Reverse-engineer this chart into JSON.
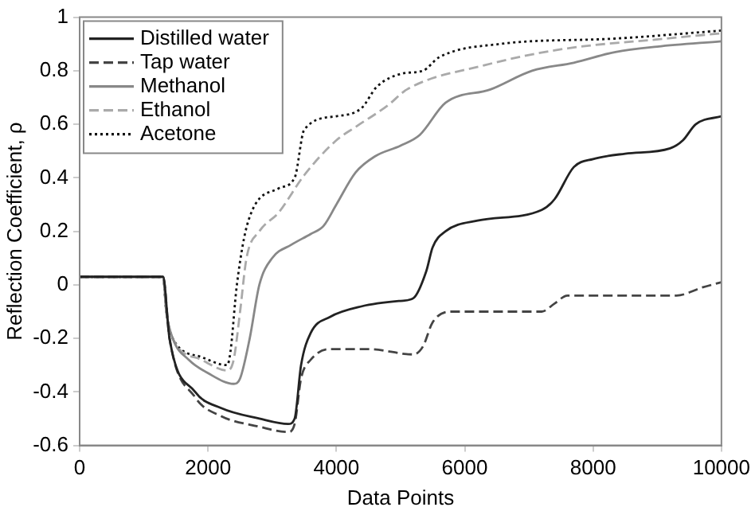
{
  "chart_data": {
    "type": "line",
    "xlabel": "Data Points",
    "ylabel": "Reflection Coefficient, ρ",
    "xlim": [
      0,
      10000
    ],
    "xticks": [
      0,
      2000,
      4000,
      6000,
      8000,
      10000
    ],
    "ylim": [
      -0.6,
      1
    ],
    "yticks": [
      -0.6,
      -0.4,
      -0.2,
      0,
      0.2,
      0.4,
      0.6,
      0.8,
      1
    ],
    "grid": false,
    "legend": "top left",
    "marker": "none",
    "x": [
      0,
      1300,
      1400,
      1800,
      2200,
      2800,
      3250,
      3350,
      3450,
      3600,
      3900,
      4400,
      5000,
      5200,
      5400,
      5500,
      5700,
      6200,
      7200,
      7400,
      7700,
      8000,
      8500,
      9200,
      9400,
      9600,
      10000
    ],
    "series": [
      {
        "name": "Distilled water",
        "color": "#222222",
        "line_style": "solid",
        "values": [
          0.03,
          0.03,
          -0.2,
          -0.4,
          -0.46,
          -0.5,
          -0.52,
          -0.5,
          -0.3,
          -0.18,
          -0.12,
          -0.08,
          -0.06,
          -0.05,
          0.05,
          0.14,
          0.2,
          0.24,
          0.28,
          0.32,
          0.44,
          0.47,
          0.49,
          0.51,
          0.54,
          0.6,
          0.63
        ]
      },
      {
        "name": "Tap water",
        "color": "#444444",
        "line_style": "dashed",
        "x": [
          0,
          1300,
          1400,
          1800,
          2200,
          2800,
          3250,
          3350,
          3450,
          3600,
          3900,
          4500,
          5200,
          5350,
          5500,
          5800,
          7200,
          7400,
          7600,
          9300,
          9700,
          10000
        ],
        "values": [
          0.03,
          0.03,
          -0.2,
          -0.42,
          -0.49,
          -0.53,
          -0.55,
          -0.52,
          -0.35,
          -0.28,
          -0.24,
          -0.24,
          -0.26,
          -0.23,
          -0.14,
          -0.1,
          -0.1,
          -0.07,
          -0.04,
          -0.04,
          -0.01,
          0.01
        ]
      },
      {
        "name": "Methanol",
        "color": "#888888",
        "line_style": "solid",
        "x": [
          0,
          1300,
          1350,
          1450,
          1700,
          2000,
          2400,
          2500,
          2650,
          2800,
          3000,
          3300,
          3600,
          3800,
          4000,
          4300,
          4600,
          5000,
          5300,
          5700,
          6400,
          7050,
          7700,
          8350,
          9000,
          10000
        ],
        "values": [
          0.03,
          0.03,
          -0.1,
          -0.2,
          -0.28,
          -0.33,
          -0.37,
          -0.35,
          -0.2,
          0,
          0.1,
          0.15,
          0.19,
          0.22,
          0.3,
          0.42,
          0.48,
          0.52,
          0.56,
          0.68,
          0.73,
          0.8,
          0.83,
          0.87,
          0.89,
          0.91
        ]
      },
      {
        "name": "Ethanol",
        "color": "#aaaaaa",
        "line_style": "dashed",
        "x": [
          0,
          1300,
          1350,
          1450,
          1900,
          2300,
          2400,
          2500,
          2600,
          2800,
          3100,
          3500,
          4000,
          4300,
          4800,
          5100,
          6300,
          7500,
          9130,
          10000
        ],
        "values": [
          0.03,
          0.03,
          -0.1,
          -0.2,
          -0.28,
          -0.32,
          -0.28,
          -0.1,
          0.1,
          0.2,
          0.27,
          0.41,
          0.54,
          0.59,
          0.67,
          0.73,
          0.82,
          0.88,
          0.92,
          0.94
        ]
      },
      {
        "name": "Acetone",
        "color": "#111111",
        "line_style": "dotted",
        "x": [
          0,
          1300,
          1350,
          1450,
          1900,
          2300,
          2350,
          2450,
          2630,
          3100,
          3350,
          3500,
          4000,
          4390,
          4630,
          5040,
          5350,
          5600,
          6550,
          8340,
          10000
        ],
        "values": [
          0.03,
          0.03,
          -0.1,
          -0.2,
          -0.27,
          -0.3,
          -0.25,
          0,
          0.24,
          0.36,
          0.4,
          0.58,
          0.63,
          0.66,
          0.74,
          0.79,
          0.8,
          0.85,
          0.9,
          0.92,
          0.95
        ]
      }
    ]
  }
}
